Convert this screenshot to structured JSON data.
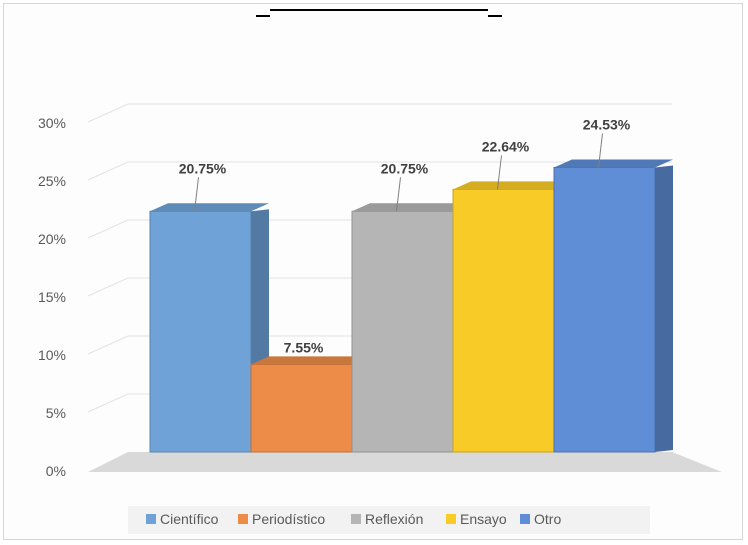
{
  "chart_data": {
    "type": "bar",
    "title": "",
    "xlabel": "",
    "ylabel": "",
    "categories": [
      "Científico",
      "Periodístico",
      "Reflexión",
      "Ensayo",
      "Otro"
    ],
    "values": [
      20.75,
      7.55,
      20.75,
      22.64,
      24.53
    ],
    "data_labels": [
      "20.75%",
      "7.55%",
      "20.75%",
      "22.64%",
      "24.53%"
    ],
    "ylim": [
      0,
      30
    ],
    "yticks": [
      "0%",
      "5%",
      "10%",
      "15%",
      "20%",
      "25%",
      "30%"
    ],
    "grid": true,
    "legend": "bottom",
    "colors": [
      "#6fa3d8",
      "#ed8c48",
      "#b5b5b5",
      "#f9cb27",
      "#5f8ed7"
    ],
    "style": "3d-column"
  }
}
